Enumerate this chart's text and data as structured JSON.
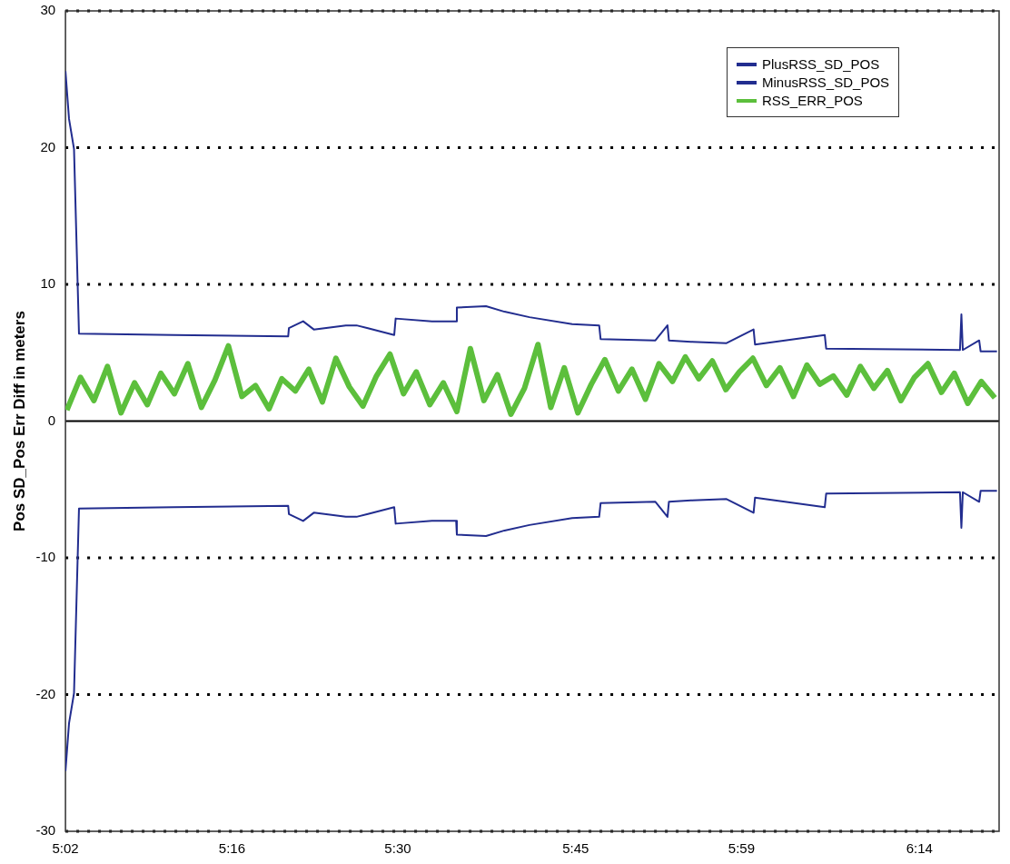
{
  "chart_data": {
    "type": "line",
    "ylabel": "Pos SD_Pos Err Diff in meters",
    "xlim": [
      5.033,
      6.345
    ],
    "xticks": [
      {
        "value": 5.033,
        "label": "5:02"
      },
      {
        "value": 5.267,
        "label": "5:16"
      },
      {
        "value": 5.5,
        "label": "5:30"
      },
      {
        "value": 5.75,
        "label": "5:45"
      },
      {
        "value": 5.983,
        "label": "5:59"
      },
      {
        "value": 6.233,
        "label": "6:14"
      }
    ],
    "ylim": [
      -30,
      30
    ],
    "yticks": [
      -30,
      -20,
      -10,
      0,
      10,
      20,
      30
    ],
    "grid": "y",
    "legend": "top right",
    "series": [
      {
        "name": "PlusRSS_SD_POS",
        "color": "#222d8f",
        "x": [
          5.033,
          5.038,
          5.045,
          5.052,
          5.185,
          5.346,
          5.347,
          5.367,
          5.382,
          5.427,
          5.442,
          5.458,
          5.495,
          5.497,
          5.548,
          5.582,
          5.583,
          5.624,
          5.65,
          5.685,
          5.745,
          5.783,
          5.785,
          5.862,
          5.879,
          5.881,
          5.912,
          5.962,
          6.0,
          6.002,
          6.1,
          6.102,
          6.29,
          6.292,
          6.294,
          6.317,
          6.319,
          6.342
        ],
        "values": [
          25.6,
          22.1,
          19.9,
          6.4,
          6.3,
          6.2,
          6.8,
          7.3,
          6.7,
          7.0,
          7.0,
          6.8,
          6.3,
          7.5,
          7.3,
          7.3,
          8.3,
          8.4,
          8.0,
          7.6,
          7.1,
          7.0,
          6.0,
          5.9,
          7.0,
          5.9,
          5.8,
          5.7,
          6.7,
          5.6,
          6.3,
          5.3,
          5.2,
          7.8,
          5.2,
          5.9,
          5.1,
          5.1
        ]
      },
      {
        "name": "MinusRSS_SD_POS",
        "color": "#222d8f",
        "x": [
          5.033,
          5.038,
          5.045,
          5.052,
          5.185,
          5.346,
          5.347,
          5.367,
          5.382,
          5.427,
          5.442,
          5.458,
          5.495,
          5.497,
          5.548,
          5.582,
          5.583,
          5.624,
          5.65,
          5.685,
          5.745,
          5.783,
          5.785,
          5.862,
          5.879,
          5.881,
          5.912,
          5.962,
          6.0,
          6.002,
          6.1,
          6.102,
          6.29,
          6.292,
          6.294,
          6.317,
          6.319,
          6.342
        ],
        "values": [
          -25.6,
          -22.1,
          -19.9,
          -6.4,
          -6.3,
          -6.2,
          -6.8,
          -7.3,
          -6.7,
          -7.0,
          -7.0,
          -6.8,
          -6.3,
          -7.5,
          -7.3,
          -7.3,
          -8.3,
          -8.4,
          -8.0,
          -7.6,
          -7.1,
          -7.0,
          -6.0,
          -5.9,
          -7.0,
          -5.9,
          -5.8,
          -5.7,
          -6.7,
          -5.6,
          -6.3,
          -5.3,
          -5.2,
          -7.8,
          -5.2,
          -5.9,
          -5.1,
          -5.1
        ]
      },
      {
        "name": "RSS_ERR_POS",
        "color": "#5cbf3c",
        "x": [
          5.035,
          5.054,
          5.073,
          5.092,
          5.111,
          5.13,
          5.148,
          5.167,
          5.186,
          5.205,
          5.224,
          5.243,
          5.262,
          5.281,
          5.3,
          5.319,
          5.337,
          5.356,
          5.375,
          5.394,
          5.413,
          5.432,
          5.451,
          5.47,
          5.489,
          5.508,
          5.526,
          5.545,
          5.564,
          5.583,
          5.602,
          5.621,
          5.64,
          5.659,
          5.678,
          5.697,
          5.715,
          5.734,
          5.753,
          5.772,
          5.791,
          5.81,
          5.829,
          5.848,
          5.867,
          5.886,
          5.904,
          5.923,
          5.942,
          5.961,
          5.98,
          5.999,
          6.018,
          6.037,
          6.056,
          6.075,
          6.093,
          6.112,
          6.131,
          6.15,
          6.169,
          6.188,
          6.207,
          6.226,
          6.245,
          6.264,
          6.282,
          6.301,
          6.32,
          6.339
        ],
        "values": [
          0.8,
          3.2,
          1.5,
          4.0,
          0.6,
          2.8,
          1.2,
          3.5,
          2.0,
          4.2,
          1.0,
          3.0,
          5.5,
          1.8,
          2.6,
          0.9,
          3.1,
          2.2,
          3.8,
          1.4,
          4.6,
          2.5,
          1.1,
          3.3,
          4.9,
          2.0,
          3.6,
          1.2,
          2.8,
          0.7,
          5.3,
          1.5,
          3.4,
          0.5,
          2.4,
          5.6,
          1.0,
          3.9,
          0.6,
          2.7,
          4.5,
          2.2,
          3.8,
          1.6,
          4.2,
          2.9,
          4.7,
          3.1,
          4.4,
          2.3,
          3.6,
          4.6,
          2.6,
          3.9,
          1.8,
          4.1,
          2.7,
          3.3,
          1.9,
          4.0,
          2.4,
          3.7,
          1.5,
          3.2,
          4.2,
          2.1,
          3.5,
          1.3,
          2.9,
          1.7
        ]
      }
    ]
  }
}
